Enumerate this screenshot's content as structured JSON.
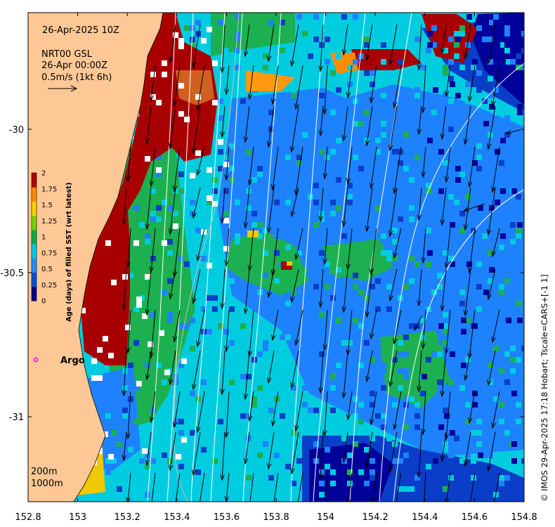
{
  "annotations": {
    "date": "26-Apr-2025 10Z",
    "product": "NRT00 GSL",
    "current_time": "26-Apr 00:00Z",
    "arrow_scale": "0.5m/s (1kt 6h)",
    "argo_label": "Argo",
    "contour_200": "200m",
    "contour_1000": "1000m",
    "credit": "© IMOS 29-Apr-2025 17:18 Hobart; Tscale=CARS+[-1 1]"
  },
  "axes": {
    "x_ticks": [
      "152.8",
      "153",
      "153.2",
      "153.4",
      "153.6",
      "153.8",
      "154",
      "154.2",
      "154.4",
      "154.6",
      "154.8"
    ],
    "y_ticks": [
      "-30",
      "-30.5",
      "-31"
    ]
  },
  "colorbar": {
    "label": "Age (days) of filled SST (wrt latest)",
    "ticks": [
      "2",
      "1.75",
      "1.5",
      "1.25",
      "1",
      "0.75",
      "0.5",
      "0.25",
      "0"
    ],
    "colors": [
      "#00008b",
      "#0050d8",
      "#1e90ff",
      "#00c8e6",
      "#00b050",
      "#7ad000",
      "#ffd000",
      "#ff8c00",
      "#b00000"
    ]
  },
  "map_colors": {
    "land": "#fdc896",
    "age_0": "#00009a",
    "age_025": "#0a3ec8",
    "age_05": "#1e82ff",
    "age_075": "#00cce0",
    "age_1": "#1cb050",
    "age_15": "#f0c800",
    "age_2": "#a80000"
  }
}
